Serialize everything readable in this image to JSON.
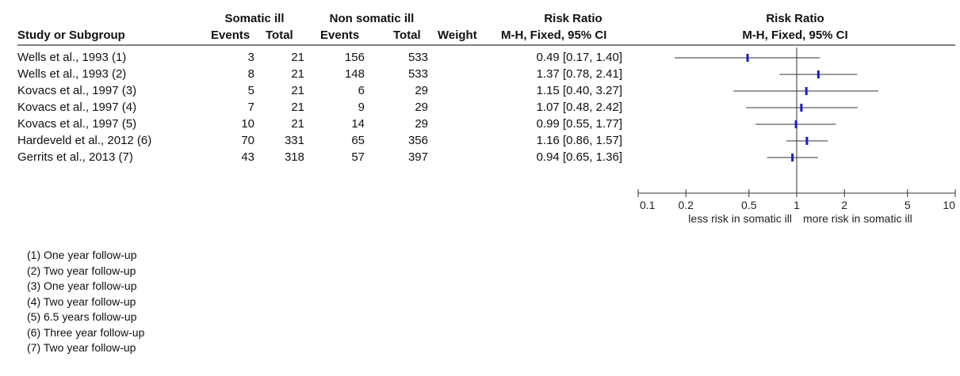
{
  "table": {
    "group_headers": {
      "somatic": "Somatic ill",
      "nonsomatic": "Non somatic ill",
      "rr_text": "Risk Ratio",
      "rr_plot": "Risk Ratio"
    },
    "columns": {
      "study": "Study or Subgroup",
      "events1": "Events",
      "total1": "Total",
      "events2": "Events",
      "total2": "Total",
      "weight": "Weight",
      "method_text": "M-H, Fixed, 95% CI",
      "method_plot": "M-H, Fixed, 95% CI"
    },
    "rows": [
      {
        "study": "Wells et al., 1993 (1)",
        "events1": "3",
        "total1": "21",
        "events2": "156",
        "total2": "533",
        "ci_text": "0.49 [0.17, 1.40]"
      },
      {
        "study": "Wells et al., 1993 (2)",
        "events1": "8",
        "total1": "21",
        "events2": "148",
        "total2": "533",
        "ci_text": "1.37 [0.78, 2.41]"
      },
      {
        "study": "Kovacs et al., 1997 (3)",
        "events1": "5",
        "total1": "21",
        "events2": "6",
        "total2": "29",
        "ci_text": "1.15 [0.40, 3.27]"
      },
      {
        "study": "Kovacs et al., 1997 (4)",
        "events1": "7",
        "total1": "21",
        "events2": "9",
        "total2": "29",
        "ci_text": "1.07 [0.48, 2.42]"
      },
      {
        "study": "Kovacs et al., 1997 (5)",
        "events1": "10",
        "total1": "21",
        "events2": "14",
        "total2": "29",
        "ci_text": "0.99 [0.55, 1.77]"
      },
      {
        "study": "Hardeveld et al., 2012 (6)",
        "events1": "70",
        "total1": "331",
        "events2": "65",
        "total2": "356",
        "ci_text": "1.16 [0.86, 1.57]"
      },
      {
        "study": "Gerrits et al., 2013 (7)",
        "events1": "43",
        "total1": "318",
        "events2": "57",
        "total2": "397",
        "ci_text": "0.94 [0.65, 1.36]"
      }
    ]
  },
  "footnotes": [
    "(1) One year follow-up",
    "(2) Two year follow-up",
    "(3) One year follow-up",
    "(4) Two year follow-up",
    "(5) 6.5 years follow-up",
    "(6) Three year follow-up",
    "(7) Two year follow-up"
  ],
  "chart_data": {
    "type": "scatter",
    "x_scale": "log",
    "xlim": [
      0.1,
      10
    ],
    "x_ticks": [
      0.1,
      0.2,
      0.5,
      1,
      2,
      5,
      10
    ],
    "x_tick_labels": [
      "0.1",
      "0.2",
      "0.5",
      "1",
      "2",
      "5",
      "10"
    ],
    "reference_line": 1,
    "xlabel_left": "less risk in somatic ill",
    "xlabel_right": "more risk in somatic ill",
    "points": [
      {
        "study": "Wells et al., 1993 (1)",
        "rr": 0.49,
        "lo": 0.17,
        "hi": 1.4
      },
      {
        "study": "Wells et al., 1993 (2)",
        "rr": 1.37,
        "lo": 0.78,
        "hi": 2.41
      },
      {
        "study": "Kovacs et al., 1997 (3)",
        "rr": 1.15,
        "lo": 0.4,
        "hi": 3.27
      },
      {
        "study": "Kovacs et al., 1997 (4)",
        "rr": 1.07,
        "lo": 0.48,
        "hi": 2.42
      },
      {
        "study": "Kovacs et al., 1997 (5)",
        "rr": 0.99,
        "lo": 0.55,
        "hi": 1.77
      },
      {
        "study": "Hardeveld et al., 2012 (6)",
        "rr": 1.16,
        "lo": 0.86,
        "hi": 1.57
      },
      {
        "study": "Gerrits et al., 2013 (7)",
        "rr": 0.94,
        "lo": 0.65,
        "hi": 1.36
      }
    ],
    "colors": {
      "ci_line": "#333333",
      "marker": "#1a1acc",
      "axis": "#333333"
    }
  }
}
